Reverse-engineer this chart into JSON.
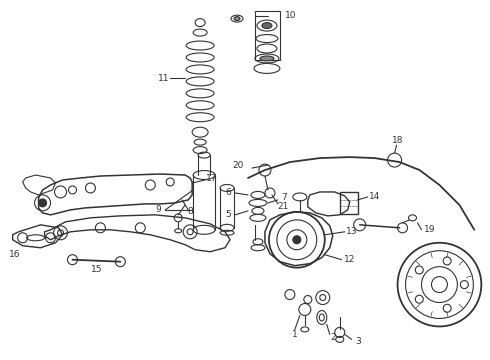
{
  "background_color": "#ffffff",
  "figure_width": 4.9,
  "figure_height": 3.6,
  "dpi": 100,
  "line_color": "#333333",
  "label_fontsize": 6.5,
  "line_width": 0.8
}
